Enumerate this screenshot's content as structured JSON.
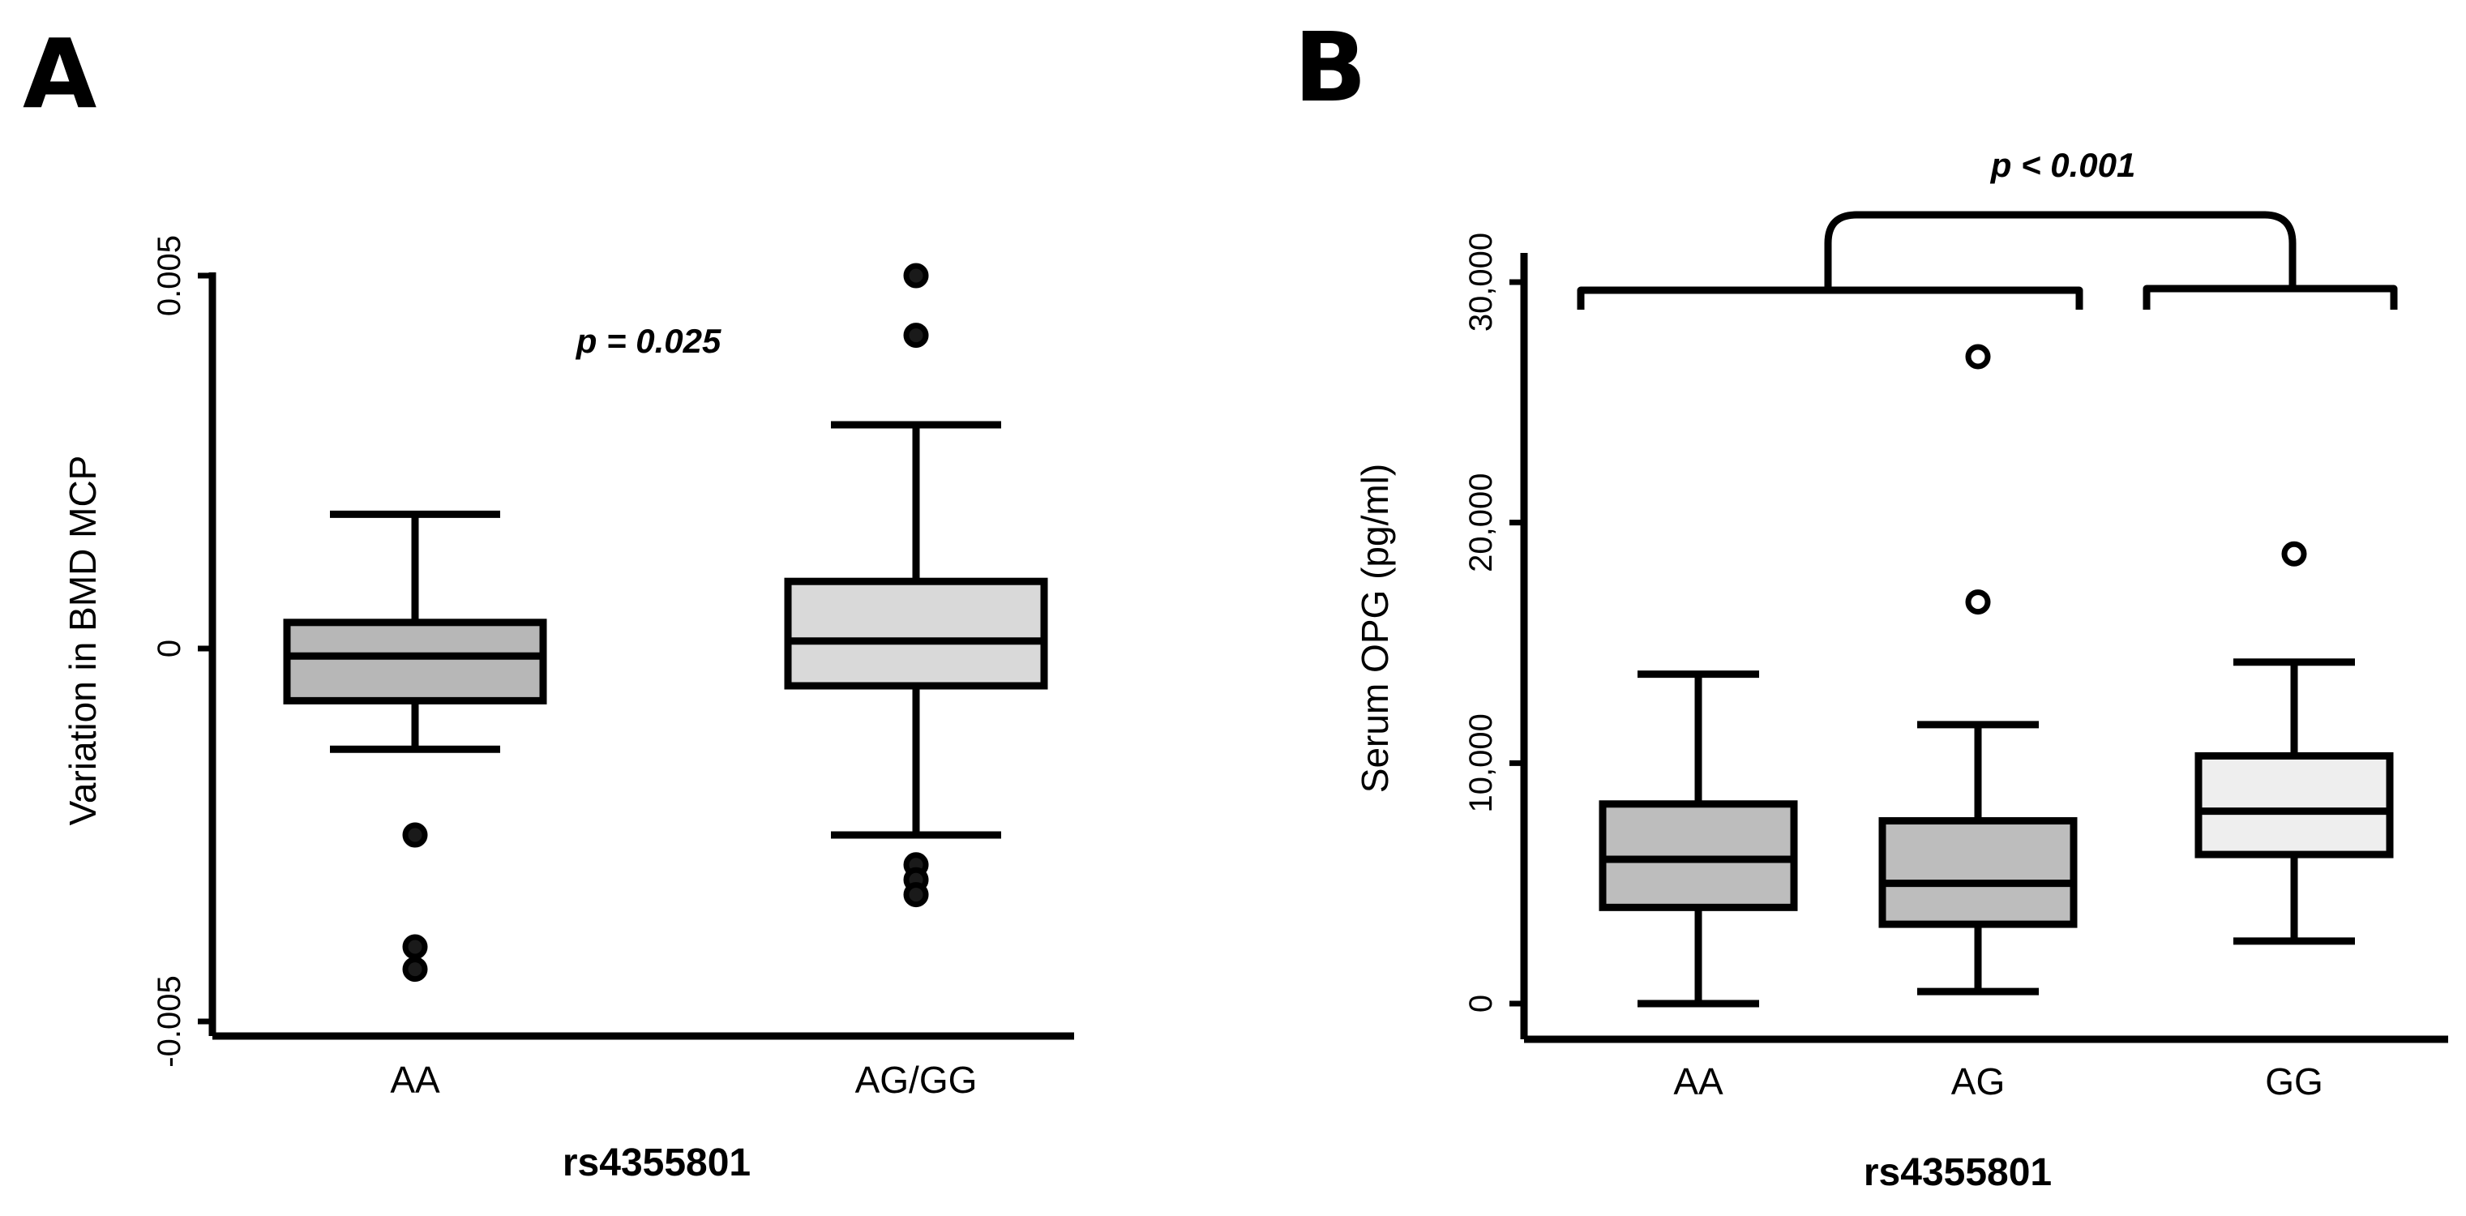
{
  "chart_data": [
    {
      "type": "box",
      "panel_label": "A",
      "ylabel": "Variation  in BMD MCP",
      "xlabel": "rs4355801",
      "ylim": [
        -0.005,
        0.005
      ],
      "yticks": [
        -0.005,
        0,
        0.005
      ],
      "ytick_labels": [
        "-0.005",
        "0",
        "0.005"
      ],
      "annotation": "p = 0.025",
      "categories": [
        "AA",
        "AG/GG"
      ],
      "boxes": [
        {
          "category": "AA",
          "min": -0.00135,
          "q1": -0.0007,
          "median": -0.0001,
          "q3": 0.00035,
          "max": 0.0018,
          "outliers": [
            -0.0025,
            -0.004,
            -0.0043
          ],
          "fill": "#b7b7b7"
        },
        {
          "category": "AG/GG",
          "min": -0.0025,
          "q1": -0.0005,
          "median": 0.0001,
          "q3": 0.0009,
          "max": 0.003,
          "outliers": [
            -0.0029,
            -0.0031,
            -0.0033,
            0.0042,
            0.005
          ],
          "fill": "#d9d9d9"
        }
      ]
    },
    {
      "type": "box",
      "panel_label": "B",
      "ylabel": "Serum OPG (pg/ml)",
      "xlabel": "rs4355801",
      "ylim": [
        0,
        30000
      ],
      "yticks": [
        0,
        10000,
        20000,
        30000
      ],
      "ytick_labels": [
        "0",
        "10,000",
        "20,000",
        "30,000"
      ],
      "annotation": "p < 0.001",
      "categories": [
        "AA",
        "AG",
        "GG"
      ],
      "boxes": [
        {
          "category": "AA",
          "min": 0,
          "q1": 4000,
          "median": 6000,
          "q3": 8300,
          "max": 13700,
          "outliers": [],
          "fill": "#bdbdbd"
        },
        {
          "category": "AG",
          "min": 500,
          "q1": 3300,
          "median": 5000,
          "q3": 7600,
          "max": 11600,
          "outliers": [
            16700,
            26900
          ],
          "fill": "#bdbdbd"
        },
        {
          "category": "GG",
          "min": 2600,
          "q1": 6200,
          "median": 8000,
          "q3": 10300,
          "max": 14200,
          "outliers": [
            18700
          ],
          "fill": "#eeeeee"
        }
      ]
    }
  ]
}
